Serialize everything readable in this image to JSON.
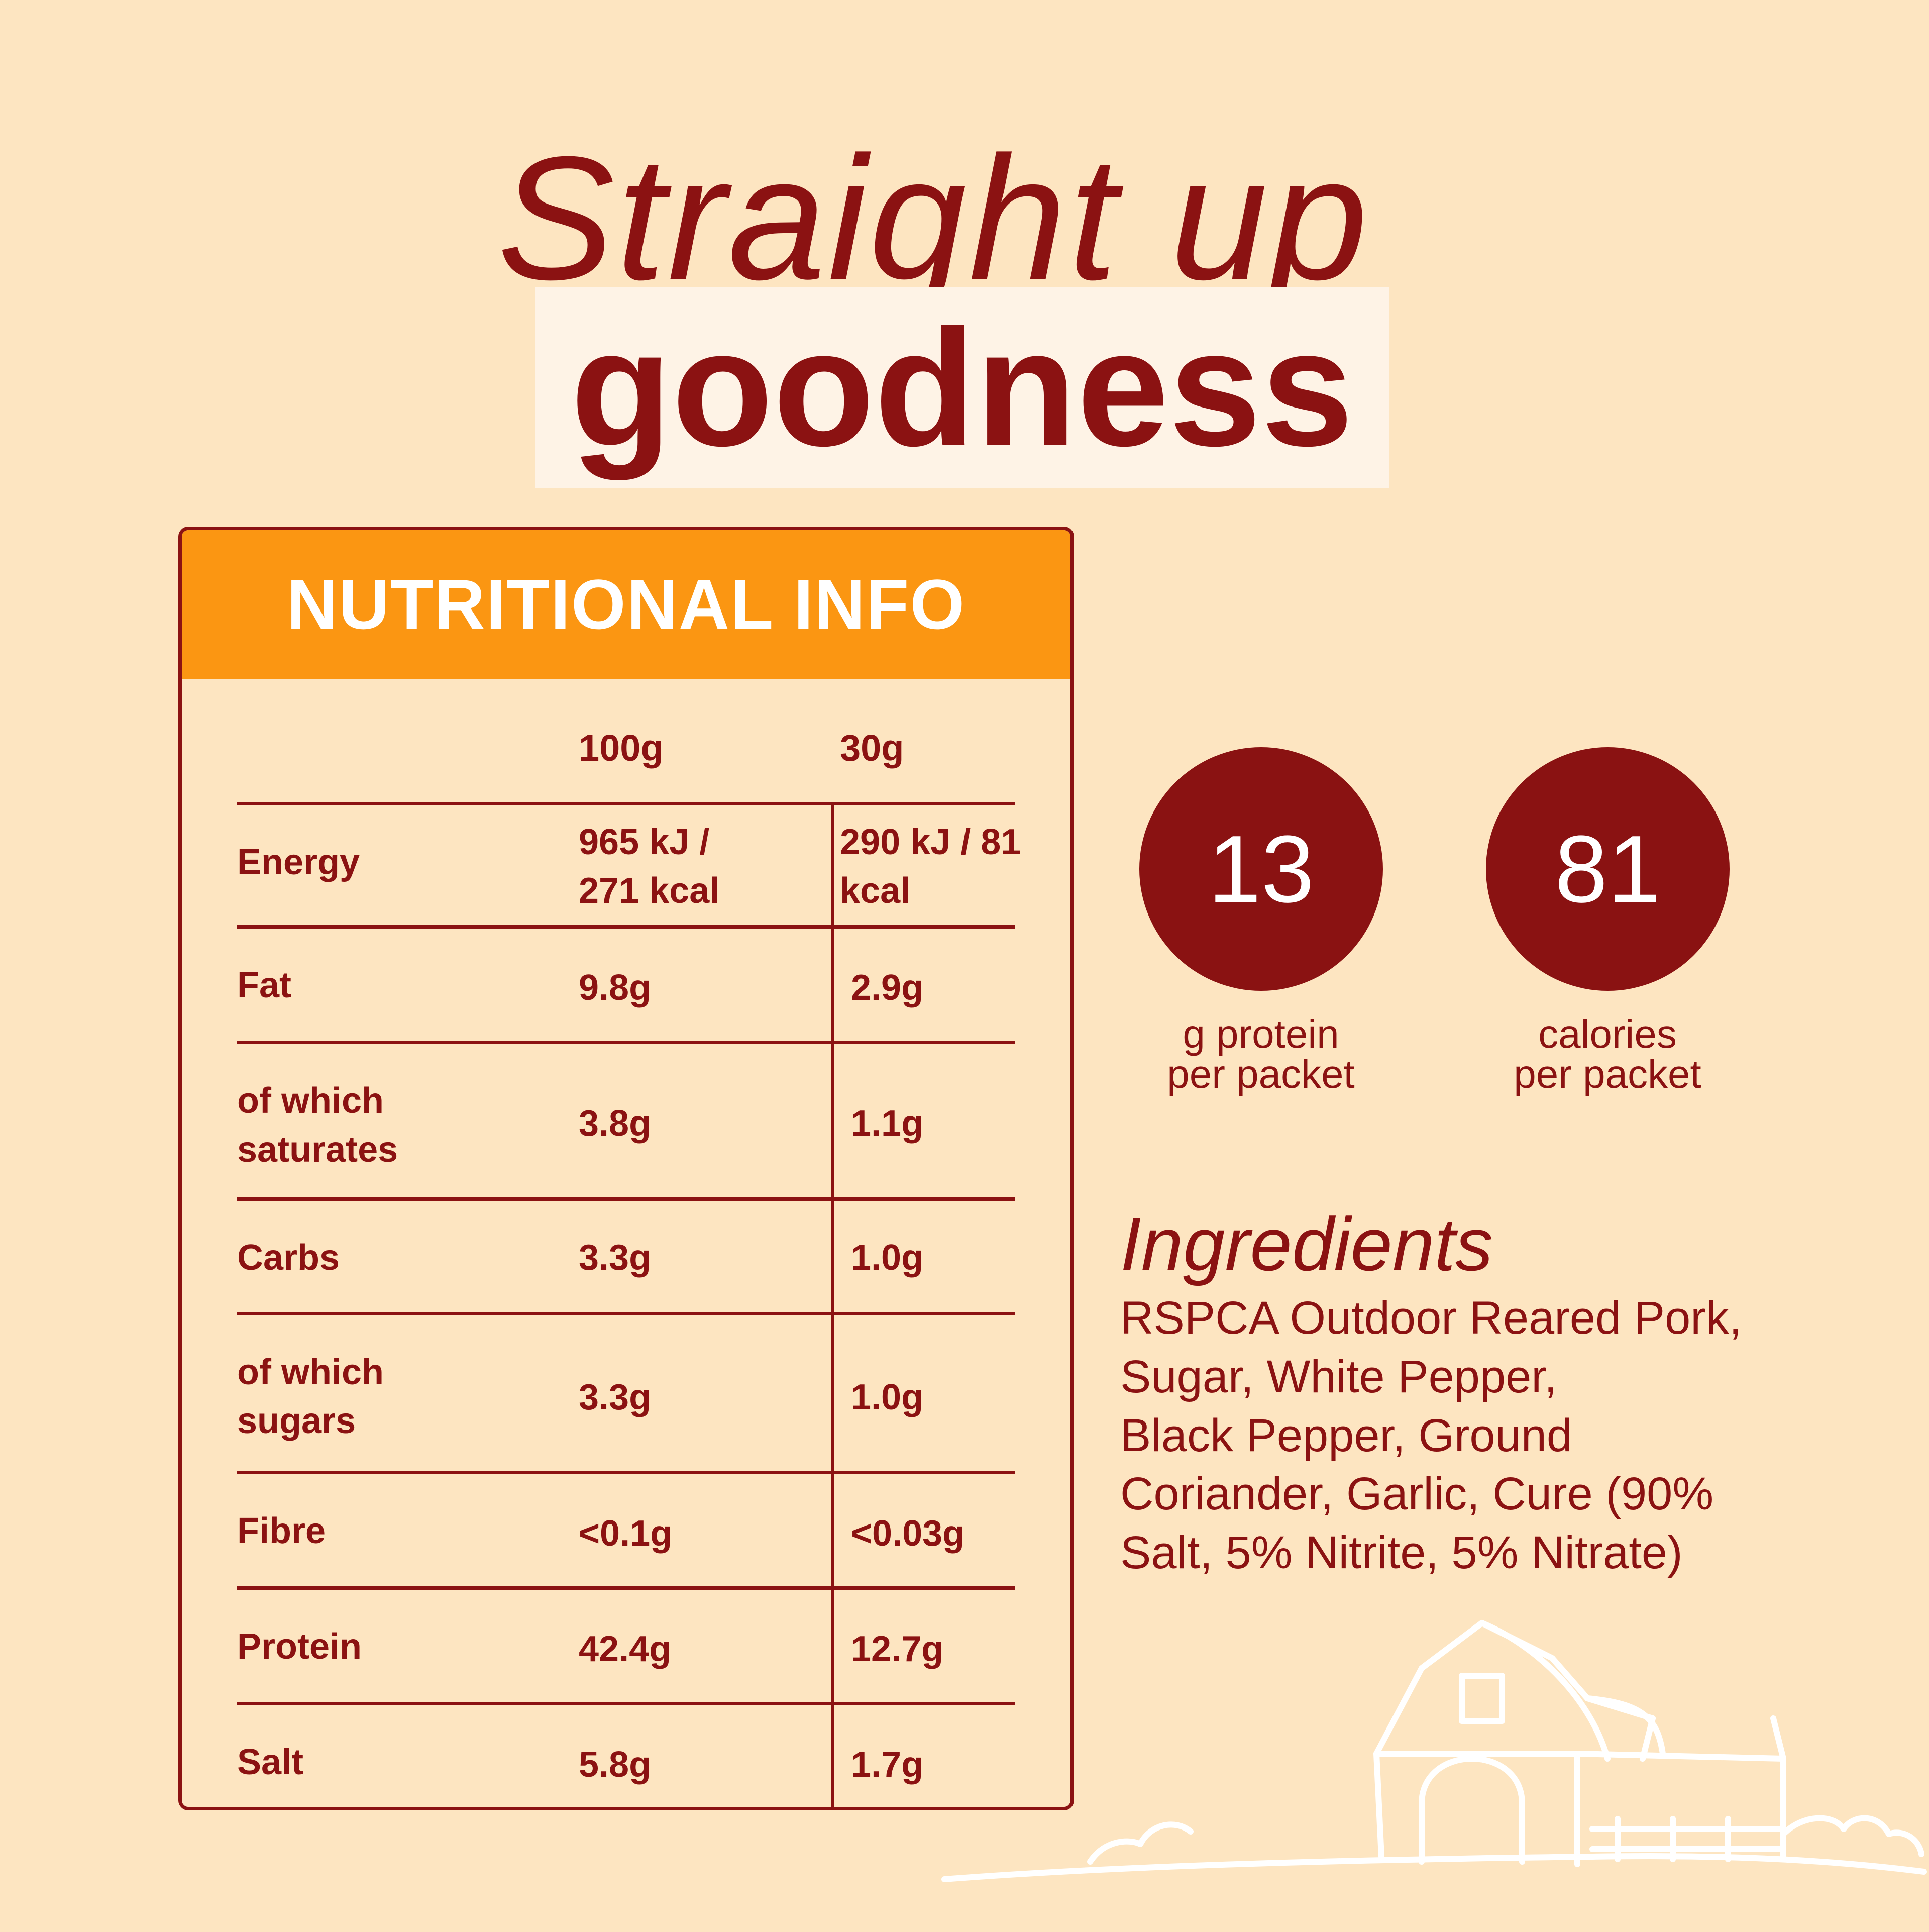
{
  "headline": {
    "line1": "Straight up",
    "line2": "goodness"
  },
  "nutrition": {
    "title": "NUTRITIONAL INFO",
    "columns": [
      "100g",
      "30g"
    ],
    "rows": [
      {
        "label": "Energy",
        "per100": "965 kJ / 271 kcal",
        "per30": "290 kJ / 81 kcal"
      },
      {
        "label": "Fat",
        "per100": "9.8g",
        "per30": "2.9g"
      },
      {
        "label": "of which saturates",
        "per100": "3.8g",
        "per30": "1.1g"
      },
      {
        "label": "Carbs",
        "per100": "3.3g",
        "per30": "1.0g"
      },
      {
        "label": "of which sugars",
        "per100": "3.3g",
        "per30": "1.0g"
      },
      {
        "label": "Fibre",
        "per100": "<0.1g",
        "per30": "<0.03g"
      },
      {
        "label": "Protein",
        "per100": "42.4g",
        "per30": "12.7g"
      },
      {
        "label": "Salt",
        "per100": "5.8g",
        "per30": "1.7g"
      }
    ]
  },
  "stats": [
    {
      "value": "13",
      "label_line1": "g protein",
      "label_line2": "per packet"
    },
    {
      "value": "81",
      "label_line1": "calories",
      "label_line2": "per packet"
    }
  ],
  "ingredients": {
    "title": "Ingredients",
    "line1": "RSPCA Outdoor Reared Pork,",
    "line2": "Sugar, White Pepper,",
    "line3": "Black Pepper, Ground",
    "line4": "Coriander, Garlic, Cure (90%",
    "line5": "Salt, 5% Nitrite, 5% Nitrate)"
  },
  "colors": {
    "background": "#FDE5C1",
    "primary": "#8B1212",
    "header": "#FB9612",
    "highlight": "#FEF3E6"
  },
  "decoration_icon": "barn-icon"
}
